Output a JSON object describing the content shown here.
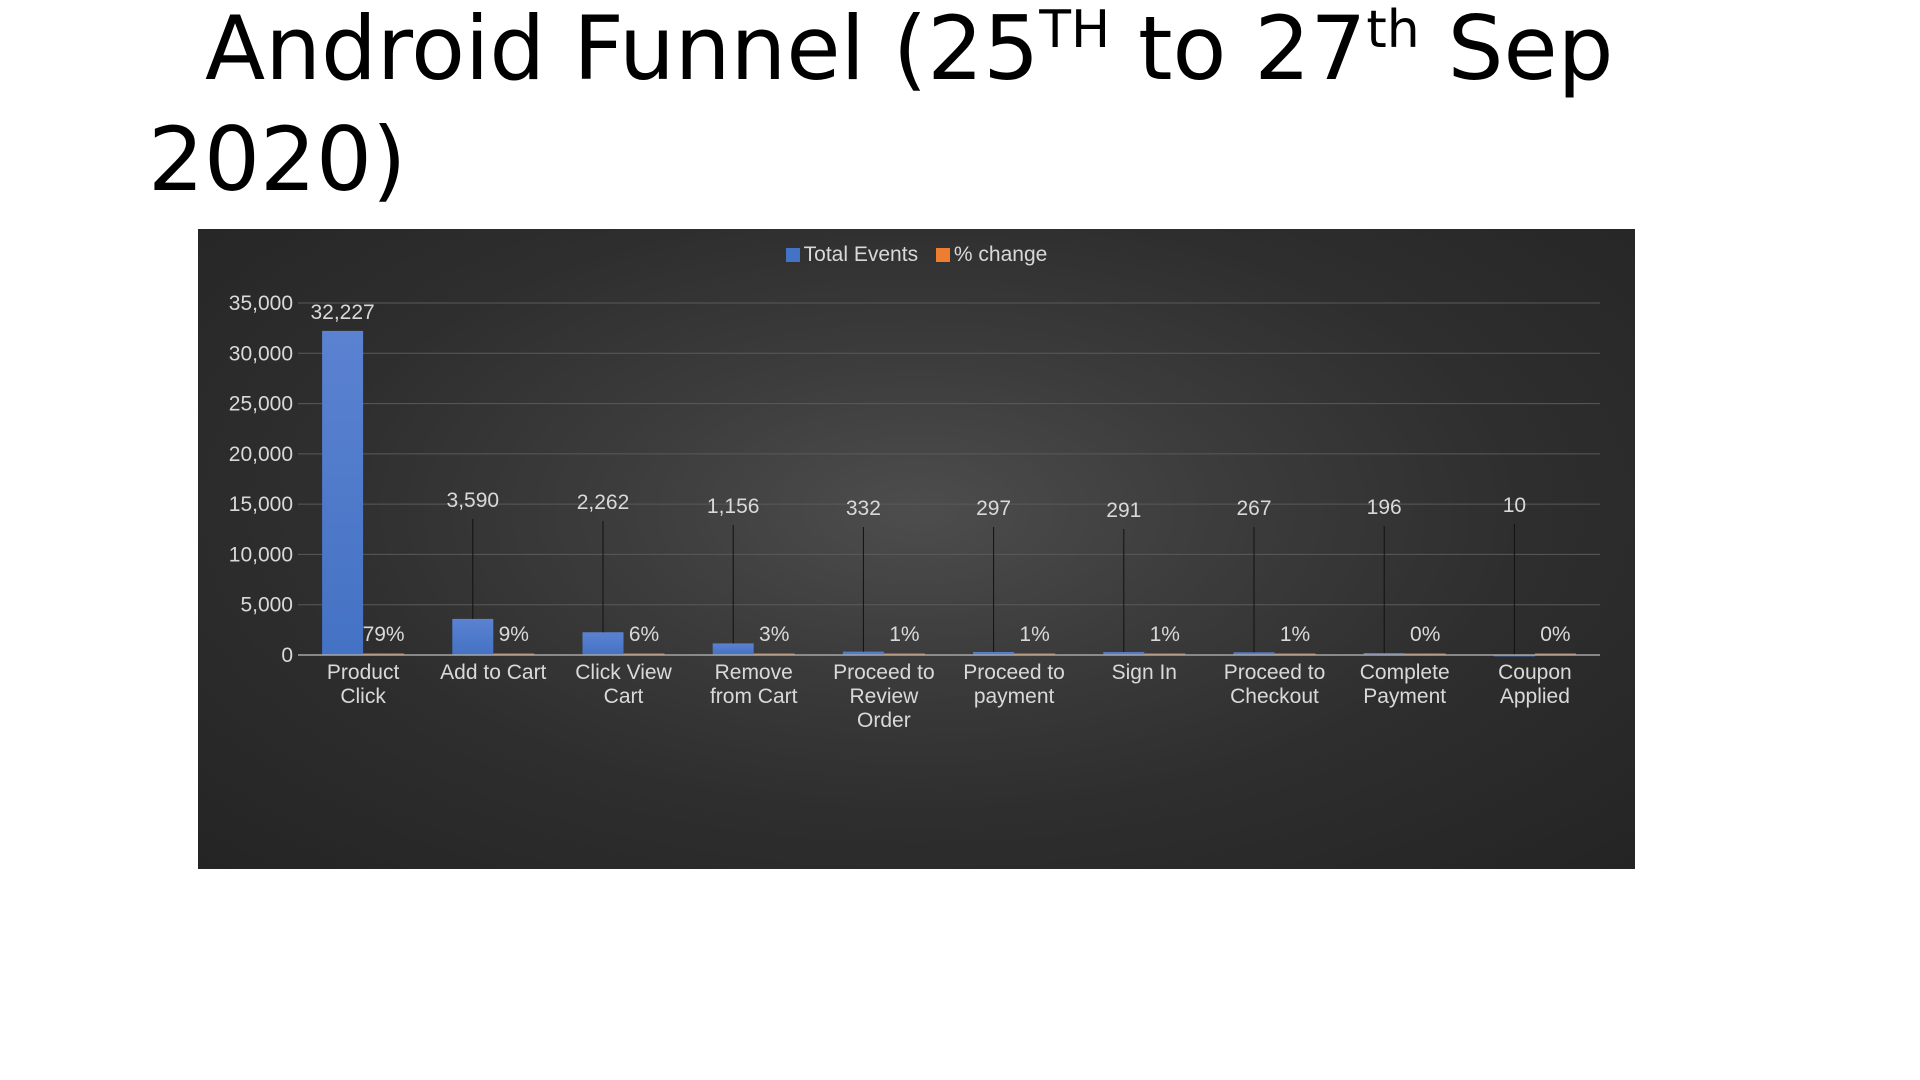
{
  "title": {
    "part1": "Android Funnel (25",
    "sup1": "TH",
    "part2": " to 27",
    "sup2": "th",
    "part3": " Sep",
    "line2": "2020)"
  },
  "colors": {
    "total_events": "#4472c4",
    "pct_change": "#ed7d31"
  },
  "chart_data": {
    "type": "bar",
    "title": "",
    "xlabel": "",
    "ylabel": "",
    "ylim": [
      0,
      35000
    ],
    "yticks": [
      0,
      5000,
      10000,
      15000,
      20000,
      25000,
      30000,
      35000
    ],
    "ytick_labels": [
      "0",
      "5,000",
      "10,000",
      "15,000",
      "20,000",
      "25,000",
      "30,000",
      "35,000"
    ],
    "grid": true,
    "legend_position": "top",
    "categories": [
      [
        "Product",
        "Click"
      ],
      [
        "Add to Cart"
      ],
      [
        "Click View",
        "Cart"
      ],
      [
        "Remove",
        "from Cart"
      ],
      [
        "Proceed to",
        "Review",
        "Order"
      ],
      [
        "Proceed to",
        "payment"
      ],
      [
        "Sign In"
      ],
      [
        "Proceed to",
        "Checkout"
      ],
      [
        "Complete",
        "Payment"
      ],
      [
        "Coupon",
        "Applied"
      ]
    ],
    "series": [
      {
        "name": "Total Events",
        "values": [
          32227,
          3590,
          2262,
          1156,
          332,
          297,
          291,
          267,
          196,
          10
        ],
        "labels": [
          "32,227",
          "3,590",
          "2,262",
          "1,156",
          "332",
          "297",
          "291",
          "267",
          "196",
          "10"
        ]
      },
      {
        "name": "% change",
        "values": [
          0.79,
          0.09,
          0.06,
          0.03,
          0.01,
          0.01,
          0.01,
          0.01,
          0.0,
          0.0
        ],
        "labels": [
          "79%",
          "9%",
          "6%",
          "3%",
          "1%",
          "1%",
          "1%",
          "1%",
          "0%",
          "0%"
        ]
      }
    ]
  }
}
